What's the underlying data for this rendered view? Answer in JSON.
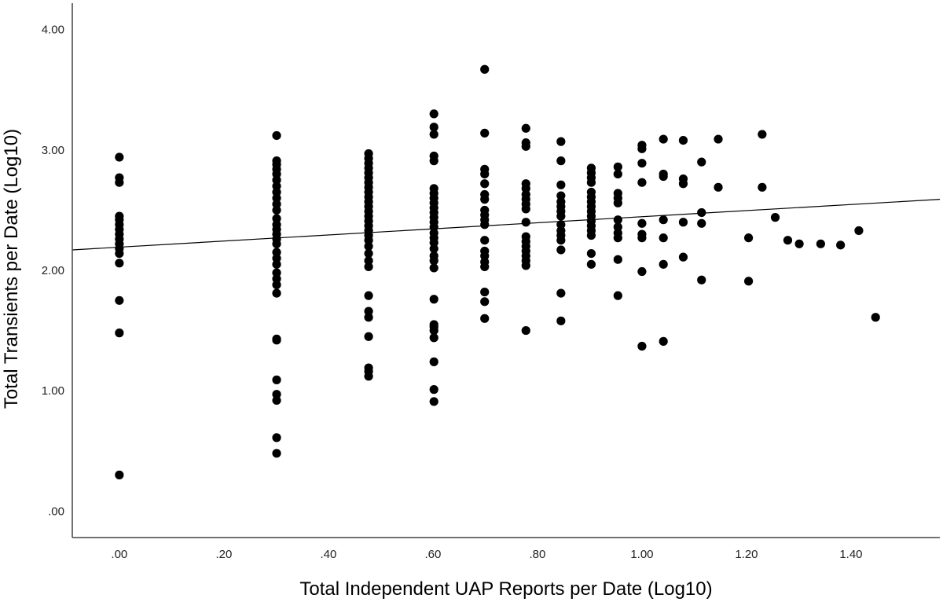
{
  "chart_data": {
    "type": "scatter",
    "xlabel": "Total Independent UAP Reports per Date (Log10)",
    "ylabel": "Total Transients per Date (Log10)",
    "xlim": [
      -0.09,
      1.57
    ],
    "ylim": [
      -0.22,
      4.22
    ],
    "x_ticks": [
      0,
      0.2,
      0.4,
      0.6,
      0.8,
      1.0,
      1.2,
      1.4
    ],
    "x_tick_labels": [
      ".00",
      ".20",
      ".40",
      ".60",
      ".80",
      "1.00",
      "1.20",
      "1.40"
    ],
    "y_ticks": [
      0,
      1,
      2,
      3,
      4
    ],
    "y_tick_labels": [
      ".00",
      "1.00",
      "2.00",
      "3.00",
      "4.00"
    ],
    "grid": false,
    "marker_color": "#000000",
    "fit_line": {
      "x": [
        -0.09,
        1.57
      ],
      "y": [
        2.17,
        2.59
      ],
      "color": "#000000"
    },
    "points": [
      [
        0,
        2.94
      ],
      [
        0,
        2.77
      ],
      [
        0,
        2.73
      ],
      [
        0,
        2.45
      ],
      [
        0,
        2.42
      ],
      [
        0,
        2.38
      ],
      [
        0,
        2.34
      ],
      [
        0,
        2.3
      ],
      [
        0,
        2.26
      ],
      [
        0,
        2.22
      ],
      [
        0,
        2.18
      ],
      [
        0,
        2.14
      ],
      [
        0,
        2.06
      ],
      [
        0,
        1.75
      ],
      [
        0,
        1.48
      ],
      [
        0,
        0.3
      ],
      [
        0.301,
        3.12
      ],
      [
        0.301,
        2.91
      ],
      [
        0.301,
        2.88
      ],
      [
        0.301,
        2.84
      ],
      [
        0.301,
        2.8
      ],
      [
        0.301,
        2.75
      ],
      [
        0.301,
        2.7
      ],
      [
        0.301,
        2.65
      ],
      [
        0.301,
        2.6
      ],
      [
        0.301,
        2.55
      ],
      [
        0.301,
        2.5
      ],
      [
        0.301,
        2.43
      ],
      [
        0.301,
        2.38
      ],
      [
        0.301,
        2.34
      ],
      [
        0.301,
        2.3
      ],
      [
        0.301,
        2.26
      ],
      [
        0.301,
        2.22
      ],
      [
        0.301,
        2.15
      ],
      [
        0.301,
        2.1
      ],
      [
        0.301,
        2.05
      ],
      [
        0.301,
        1.98
      ],
      [
        0.301,
        1.93
      ],
      [
        0.301,
        1.88
      ],
      [
        0.301,
        1.81
      ],
      [
        0.301,
        1.43
      ],
      [
        0.301,
        1.42
      ],
      [
        0.301,
        1.09
      ],
      [
        0.301,
        0.97
      ],
      [
        0.301,
        0.92
      ],
      [
        0.301,
        0.61
      ],
      [
        0.301,
        0.48
      ],
      [
        0.477,
        2.97
      ],
      [
        0.477,
        2.93
      ],
      [
        0.477,
        2.89
      ],
      [
        0.477,
        2.85
      ],
      [
        0.477,
        2.81
      ],
      [
        0.477,
        2.77
      ],
      [
        0.477,
        2.73
      ],
      [
        0.477,
        2.69
      ],
      [
        0.477,
        2.65
      ],
      [
        0.477,
        2.61
      ],
      [
        0.477,
        2.57
      ],
      [
        0.477,
        2.53
      ],
      [
        0.477,
        2.49
      ],
      [
        0.477,
        2.45
      ],
      [
        0.477,
        2.41
      ],
      [
        0.477,
        2.37
      ],
      [
        0.477,
        2.33
      ],
      [
        0.477,
        2.29
      ],
      [
        0.477,
        2.25
      ],
      [
        0.477,
        2.2
      ],
      [
        0.477,
        2.14
      ],
      [
        0.477,
        2.08
      ],
      [
        0.477,
        2.03
      ],
      [
        0.477,
        1.79
      ],
      [
        0.477,
        1.66
      ],
      [
        0.477,
        1.61
      ],
      [
        0.477,
        1.45
      ],
      [
        0.477,
        1.19
      ],
      [
        0.477,
        1.16
      ],
      [
        0.477,
        1.12
      ],
      [
        0.602,
        3.3
      ],
      [
        0.602,
        3.19
      ],
      [
        0.602,
        3.13
      ],
      [
        0.602,
        2.95
      ],
      [
        0.602,
        2.91
      ],
      [
        0.602,
        2.68
      ],
      [
        0.602,
        2.64
      ],
      [
        0.602,
        2.6
      ],
      [
        0.602,
        2.56
      ],
      [
        0.602,
        2.52
      ],
      [
        0.602,
        2.48
      ],
      [
        0.602,
        2.44
      ],
      [
        0.602,
        2.4
      ],
      [
        0.602,
        2.36
      ],
      [
        0.602,
        2.31
      ],
      [
        0.602,
        2.27
      ],
      [
        0.602,
        2.23
      ],
      [
        0.602,
        2.18
      ],
      [
        0.602,
        2.12
      ],
      [
        0.602,
        2.08
      ],
      [
        0.602,
        2.02
      ],
      [
        0.602,
        1.76
      ],
      [
        0.602,
        1.55
      ],
      [
        0.602,
        1.53
      ],
      [
        0.602,
        1.5
      ],
      [
        0.602,
        1.44
      ],
      [
        0.602,
        1.24
      ],
      [
        0.602,
        1.01
      ],
      [
        0.602,
        0.91
      ],
      [
        0.699,
        3.67
      ],
      [
        0.699,
        3.14
      ],
      [
        0.699,
        2.84
      ],
      [
        0.699,
        2.8
      ],
      [
        0.699,
        2.72
      ],
      [
        0.699,
        2.63
      ],
      [
        0.699,
        2.59
      ],
      [
        0.699,
        2.5
      ],
      [
        0.699,
        2.46
      ],
      [
        0.699,
        2.42
      ],
      [
        0.699,
        2.38
      ],
      [
        0.699,
        2.25
      ],
      [
        0.699,
        2.16
      ],
      [
        0.699,
        2.12
      ],
      [
        0.699,
        2.07
      ],
      [
        0.699,
        2.03
      ],
      [
        0.699,
        1.82
      ],
      [
        0.699,
        1.74
      ],
      [
        0.699,
        1.6
      ],
      [
        0.778,
        3.18
      ],
      [
        0.778,
        3.06
      ],
      [
        0.778,
        3.03
      ],
      [
        0.778,
        2.72
      ],
      [
        0.778,
        2.68
      ],
      [
        0.778,
        2.63
      ],
      [
        0.778,
        2.59
      ],
      [
        0.778,
        2.55
      ],
      [
        0.778,
        2.51
      ],
      [
        0.778,
        2.4
      ],
      [
        0.778,
        2.28
      ],
      [
        0.778,
        2.24
      ],
      [
        0.778,
        2.2
      ],
      [
        0.778,
        2.16
      ],
      [
        0.778,
        2.12
      ],
      [
        0.778,
        2.08
      ],
      [
        0.778,
        2.04
      ],
      [
        0.778,
        1.5
      ],
      [
        0.845,
        3.07
      ],
      [
        0.845,
        2.91
      ],
      [
        0.845,
        2.71
      ],
      [
        0.845,
        2.62
      ],
      [
        0.845,
        2.57
      ],
      [
        0.845,
        2.53
      ],
      [
        0.845,
        2.49
      ],
      [
        0.845,
        2.45
      ],
      [
        0.845,
        2.38
      ],
      [
        0.845,
        2.33
      ],
      [
        0.845,
        2.29
      ],
      [
        0.845,
        2.25
      ],
      [
        0.845,
        2.17
      ],
      [
        0.845,
        1.81
      ],
      [
        0.845,
        1.58
      ],
      [
        0.903,
        2.85
      ],
      [
        0.903,
        2.81
      ],
      [
        0.903,
        2.77
      ],
      [
        0.903,
        2.73
      ],
      [
        0.903,
        2.65
      ],
      [
        0.903,
        2.61
      ],
      [
        0.903,
        2.57
      ],
      [
        0.903,
        2.53
      ],
      [
        0.903,
        2.49
      ],
      [
        0.903,
        2.45
      ],
      [
        0.903,
        2.41
      ],
      [
        0.903,
        2.37
      ],
      [
        0.903,
        2.33
      ],
      [
        0.903,
        2.29
      ],
      [
        0.903,
        2.14
      ],
      [
        0.903,
        2.05
      ],
      [
        0.954,
        2.86
      ],
      [
        0.954,
        2.8
      ],
      [
        0.954,
        2.64
      ],
      [
        0.954,
        2.6
      ],
      [
        0.954,
        2.56
      ],
      [
        0.954,
        2.42
      ],
      [
        0.954,
        2.36
      ],
      [
        0.954,
        2.31
      ],
      [
        0.954,
        2.27
      ],
      [
        0.954,
        2.09
      ],
      [
        0.954,
        1.79
      ],
      [
        1.0,
        3.04
      ],
      [
        1.0,
        3.01
      ],
      [
        1.0,
        2.89
      ],
      [
        1.0,
        2.73
      ],
      [
        1.0,
        2.39
      ],
      [
        1.0,
        2.3
      ],
      [
        1.0,
        2.27
      ],
      [
        1.0,
        1.99
      ],
      [
        1.0,
        1.37
      ],
      [
        1.041,
        3.09
      ],
      [
        1.041,
        2.8
      ],
      [
        1.041,
        2.78
      ],
      [
        1.041,
        2.42
      ],
      [
        1.041,
        2.27
      ],
      [
        1.041,
        2.05
      ],
      [
        1.041,
        1.41
      ],
      [
        1.079,
        3.08
      ],
      [
        1.079,
        2.76
      ],
      [
        1.079,
        2.72
      ],
      [
        1.079,
        2.4
      ],
      [
        1.079,
        2.11
      ],
      [
        1.114,
        2.9
      ],
      [
        1.114,
        2.48
      ],
      [
        1.114,
        2.39
      ],
      [
        1.114,
        1.92
      ],
      [
        1.146,
        3.09
      ],
      [
        1.146,
        2.69
      ],
      [
        1.204,
        2.27
      ],
      [
        1.204,
        1.91
      ],
      [
        1.23,
        3.13
      ],
      [
        1.23,
        2.69
      ],
      [
        1.255,
        2.44
      ],
      [
        1.279,
        2.25
      ],
      [
        1.301,
        2.22
      ],
      [
        1.342,
        2.22
      ],
      [
        1.38,
        2.21
      ],
      [
        1.415,
        2.33
      ],
      [
        1.447,
        1.61
      ]
    ]
  }
}
